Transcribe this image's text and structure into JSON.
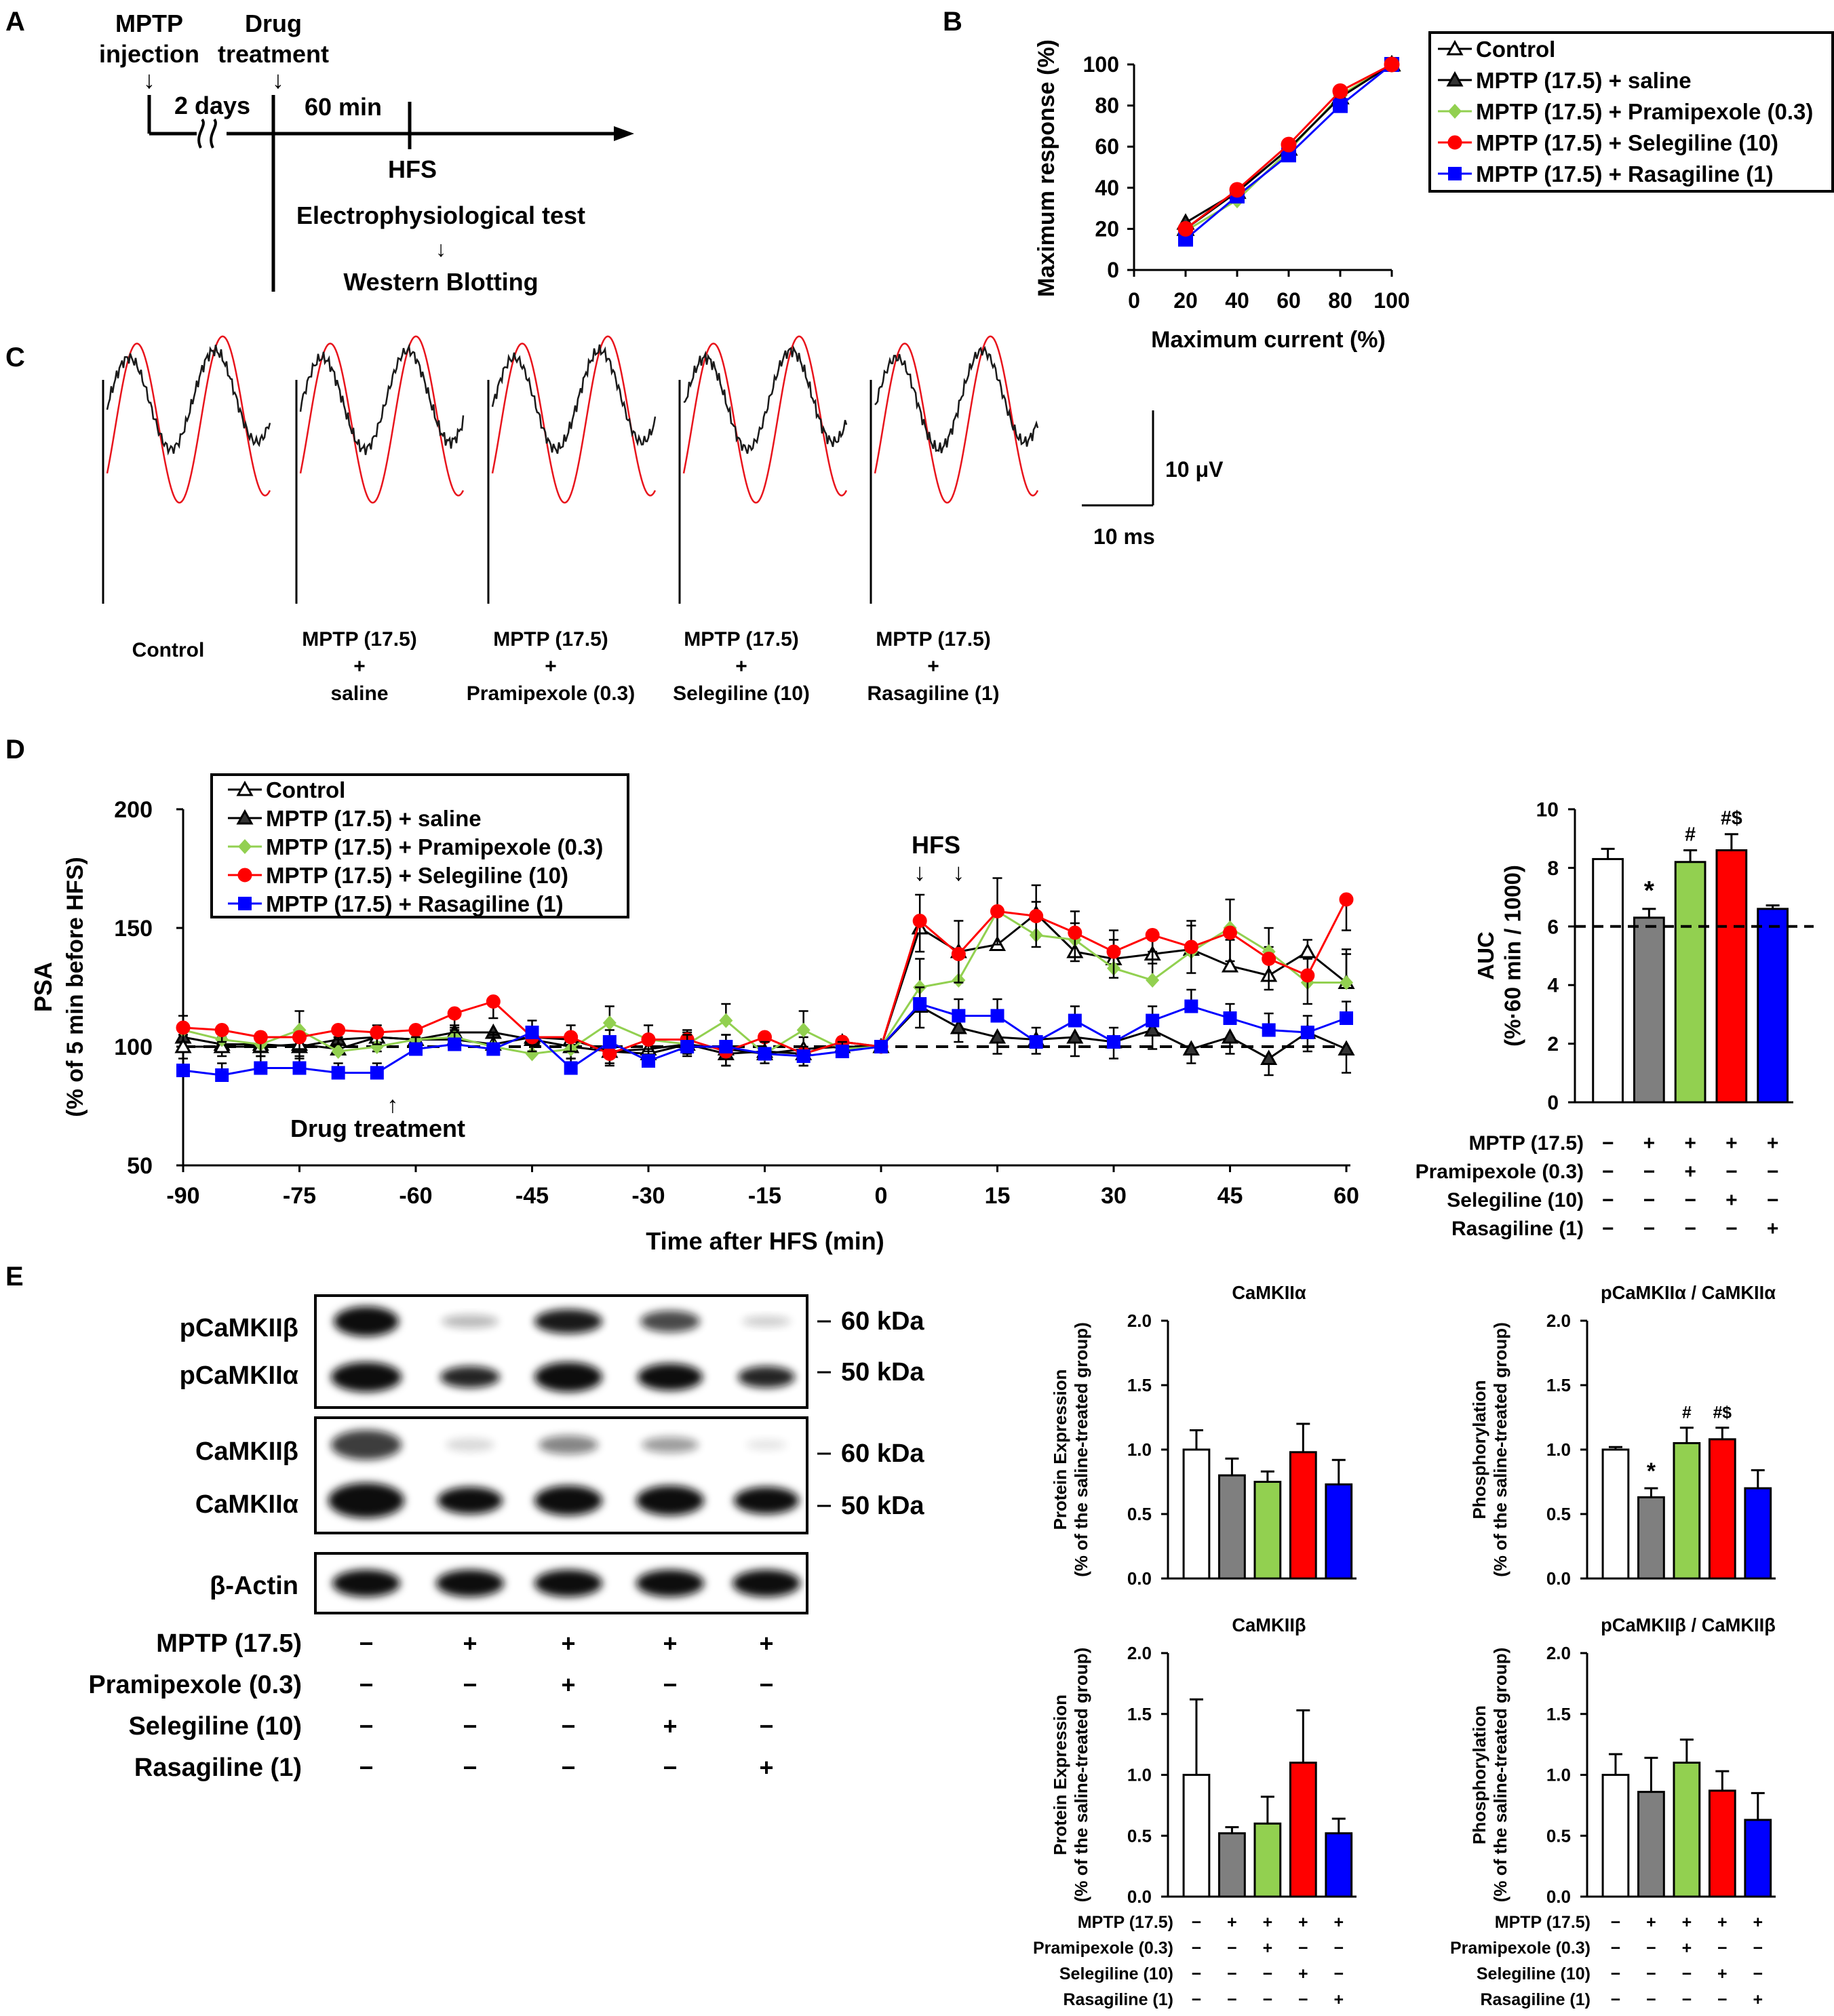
{
  "panel_letters": [
    "A",
    "B",
    "C",
    "D",
    "E"
  ],
  "colors": {
    "control": "#ffffff",
    "saline": "#7f7f7f",
    "pramipexole": "#92d050",
    "selegiline": "#ff0000",
    "rasagiline": "#0000ff",
    "axis": "#000000",
    "trace_black": "#1a1a1a",
    "trace_red": "#e8141c"
  },
  "groups_legend": [
    {
      "label": "Control",
      "marker": "triangle-open",
      "color": "#000000"
    },
    {
      "label": "MPTP (17.5) + saline",
      "marker": "triangle-filled",
      "color": "#000000"
    },
    {
      "label": "MPTP (17.5) + Pramipexole (0.3)",
      "marker": "diamond",
      "color": "#92d050"
    },
    {
      "label": "MPTP (17.5) + Selegiline (10)",
      "marker": "circle",
      "color": "#ff0000"
    },
    {
      "label": "MPTP (17.5) + Rasagiline (1)",
      "marker": "square",
      "color": "#0000ff"
    }
  ],
  "timeline": {
    "mptp_label": [
      "MPTP",
      "injection"
    ],
    "drug_label": [
      "Drug",
      "treatment"
    ],
    "gap_label": "2 days",
    "interval_label": "60 min",
    "hfs_label": "HFS",
    "test_label": "Electrophysiological test",
    "wb_label": "Western Blotting",
    "arrow_down": "↓"
  },
  "traces": {
    "labels": [
      [
        "Control"
      ],
      [
        "MPTP (17.5)",
        "+",
        "saline"
      ],
      [
        "MPTP (17.5)",
        "+",
        "Pramipexole (0.3)"
      ],
      [
        "MPTP (17.5)",
        "+",
        "Selegiline (10)"
      ],
      [
        "MPTP (17.5)",
        "+",
        "Rasagiline (1)"
      ]
    ],
    "scale_v": "10 μV",
    "scale_t": "10 ms"
  },
  "blot": {
    "bands_top": [
      "pCaMKIIβ",
      "pCaMKIIα"
    ],
    "bands_mid": [
      "CaMKIIβ",
      "CaMKIIα"
    ],
    "band_actin": "β-Actin",
    "kda": [
      "60 kDa",
      "50 kDa",
      "60 kDa",
      "50 kDa"
    ],
    "treatment_rows": [
      {
        "label": "MPTP (17.5)",
        "signs": [
          "−",
          "+",
          "+",
          "+",
          "+"
        ]
      },
      {
        "label": "Pramipexole (0.3)",
        "signs": [
          "−",
          "−",
          "+",
          "−",
          "−"
        ]
      },
      {
        "label": "Selegiline (10)",
        "signs": [
          "−",
          "−",
          "−",
          "+",
          "−"
        ]
      },
      {
        "label": "Rasagiline (1)",
        "signs": [
          "−",
          "−",
          "−",
          "−",
          "+"
        ]
      }
    ]
  },
  "treatment_rows_bar": [
    {
      "label": "MPTP (17.5)",
      "signs": [
        "−",
        "+",
        "+",
        "+",
        "+"
      ]
    },
    {
      "label": "Pramipexole (0.3)",
      "signs": [
        "−",
        "−",
        "+",
        "−",
        "−"
      ]
    },
    {
      "label": "Selegiline (10)",
      "signs": [
        "−",
        "−",
        "−",
        "+",
        "−"
      ]
    },
    {
      "label": "Rasagiline (1)",
      "signs": [
        "−",
        "−",
        "−",
        "−",
        "+"
      ]
    }
  ],
  "chart_data": [
    {
      "id": "B",
      "type": "line",
      "xlabel": "Maximum current (%)",
      "ylabel": "Maximum response (%)",
      "xlim": [
        0,
        100
      ],
      "ylim": [
        0,
        100
      ],
      "xticks": [
        0,
        20,
        40,
        60,
        80,
        100
      ],
      "yticks": [
        0,
        20,
        40,
        60,
        80,
        100
      ],
      "x": [
        20,
        40,
        60,
        80,
        100
      ],
      "series": [
        {
          "name": "Control",
          "values": [
            20,
            38,
            59,
            84,
            100
          ]
        },
        {
          "name": "MPTP (17.5) + saline",
          "values": [
            23,
            38,
            59,
            84,
            100
          ]
        },
        {
          "name": "MPTP (17.5) + Pramipexole (0.3)",
          "values": [
            19,
            34,
            58,
            85,
            100
          ]
        },
        {
          "name": "MPTP (17.5) + Selegiline (10)",
          "values": [
            20,
            39,
            61,
            87,
            100
          ]
        },
        {
          "name": "MPTP (17.5) + Rasagiline (1)",
          "values": [
            15,
            36,
            56,
            80,
            100
          ]
        }
      ]
    },
    {
      "id": "D-time",
      "type": "line",
      "xlabel": "Time after HFS (min)",
      "ylabel": [
        "PSA",
        "(% of 5 min before HFS)"
      ],
      "xlim": [
        -90,
        60
      ],
      "ylim": [
        50,
        200
      ],
      "xticks": [
        -90,
        -75,
        -60,
        -45,
        -30,
        -15,
        0,
        15,
        30,
        45,
        60
      ],
      "yticks": [
        50,
        100,
        150,
        200
      ],
      "baseline": 100,
      "annotations": [
        {
          "text": "HFS",
          "x": 5
        },
        {
          "text": "Drug treatment",
          "x": -63
        }
      ],
      "x": [
        -90,
        -85,
        -80,
        -75,
        -70,
        -65,
        -60,
        -55,
        -50,
        -45,
        -40,
        -35,
        -30,
        -25,
        -20,
        -15,
        -10,
        -5,
        0,
        5,
        10,
        15,
        20,
        25,
        30,
        35,
        40,
        45,
        50,
        55,
        60
      ],
      "series": [
        {
          "name": "Control",
          "values": [
            100,
            100,
            100,
            101,
            99,
            104,
            103,
            103,
            101,
            104,
            103,
            98,
            99,
            101,
            99,
            97,
            99,
            100,
            100,
            150,
            140,
            143,
            156,
            140,
            137,
            139,
            141,
            134,
            130,
            140,
            127
          ],
          "errors": [
            5,
            4,
            5,
            5,
            5,
            5,
            5,
            5,
            5,
            4,
            6,
            5,
            4,
            5,
            6,
            5,
            5,
            3,
            0,
            14,
            13,
            14,
            12,
            12,
            12,
            10,
            12,
            11,
            12,
            5,
            14
          ]
        },
        {
          "name": "MPTP (17.5) + saline",
          "values": [
            104,
            101,
            101,
            100,
            103,
            104,
            103,
            106,
            106,
            103,
            100,
            98,
            97,
            101,
            97,
            98,
            97,
            102,
            100,
            117,
            108,
            104,
            103,
            104,
            102,
            107,
            99,
            104,
            95,
            106,
            99
          ],
          "errors": [
            5,
            5,
            5,
            5,
            5,
            6,
            6,
            5,
            6,
            5,
            5,
            5,
            5,
            5,
            5,
            5,
            5,
            4,
            0,
            9,
            6,
            7,
            6,
            8,
            7,
            8,
            6,
            7,
            7,
            8,
            10
          ]
        },
        {
          "name": "MPTP (17.5) + Pramipexole (0.3)",
          "values": [
            107,
            103,
            101,
            107,
            98,
            100,
            103,
            104,
            100,
            97,
            99,
            110,
            103,
            101,
            111,
            97,
            107,
            99,
            100,
            125,
            128,
            157,
            147,
            145,
            133,
            128,
            140,
            150,
            140,
            127,
            127
          ],
          "errors": [
            6,
            5,
            5,
            8,
            5,
            6,
            5,
            5,
            6,
            5,
            6,
            7,
            6,
            6,
            7,
            5,
            8,
            5,
            0,
            12,
            12,
            14,
            14,
            12,
            12,
            12,
            11,
            12,
            10,
            10,
            12
          ]
        },
        {
          "name": "MPTP (17.5) + Selegiline (10)",
          "values": [
            108,
            107,
            104,
            104,
            107,
            106,
            107,
            114,
            119,
            104,
            104,
            97,
            103,
            103,
            98,
            104,
            97,
            102,
            100,
            153,
            139,
            157,
            155,
            148,
            140,
            147,
            142,
            148,
            137,
            130,
            162
          ],
          "errors": [
            6,
            5,
            6,
            5,
            6,
            5,
            6,
            7,
            7,
            6,
            6,
            5,
            5,
            6,
            6,
            6,
            5,
            5,
            0,
            13,
            12,
            14,
            13,
            12,
            11,
            12,
            11,
            12,
            13,
            12,
            13
          ]
        },
        {
          "name": "MPTP (17.5) + Rasagiline (1)",
          "values": [
            90,
            88,
            91,
            91,
            89,
            89,
            99,
            101,
            99,
            106,
            91,
            102,
            94,
            100,
            100,
            97,
            96,
            98,
            100,
            118,
            113,
            113,
            102,
            111,
            102,
            111,
            117,
            112,
            107,
            106,
            112
          ],
          "errors": [
            5,
            5,
            5,
            5,
            4,
            4,
            5,
            5,
            6,
            5,
            4,
            5,
            5,
            5,
            5,
            5,
            4,
            4,
            0,
            7,
            7,
            7,
            6,
            6,
            6,
            6,
            7,
            6,
            7,
            7,
            7
          ]
        }
      ]
    },
    {
      "id": "D-AUC",
      "type": "bar",
      "ylabel": [
        "AUC",
        "(%·60 min / 1000)"
      ],
      "ylim": [
        0,
        10
      ],
      "yticks": [
        0,
        2,
        4,
        6,
        8,
        10
      ],
      "baseline": 6,
      "values": [
        8.3,
        6.3,
        8.2,
        8.6,
        6.6
      ],
      "errors": [
        0.35,
        0.3,
        0.4,
        0.55,
        0.12
      ],
      "sig": [
        "",
        "*",
        "#",
        "#$",
        ""
      ]
    },
    {
      "id": "E-CaMKIIa",
      "type": "bar",
      "title": "CaMKIIα",
      "ylabel": [
        "Protein Expression",
        "(% of the saline-treated group)"
      ],
      "ylim": [
        0,
        2
      ],
      "yticks": [
        "0.0",
        "0.5",
        "1.0",
        "1.5",
        "2.0"
      ],
      "values": [
        1.0,
        0.8,
        0.75,
        0.98,
        0.73
      ],
      "errors": [
        0.15,
        0.13,
        0.08,
        0.22,
        0.19
      ],
      "sig": [
        "",
        "",
        "",
        "",
        ""
      ]
    },
    {
      "id": "E-pCaMKIIa",
      "type": "bar",
      "title": "pCaMKIIα / CaMKIIα",
      "ylabel": [
        "Phosphorylation",
        "(% of the saline-treated group)"
      ],
      "ylim": [
        0,
        2
      ],
      "yticks": [
        "0.0",
        "0.5",
        "1.0",
        "1.5",
        "2.0"
      ],
      "values": [
        1.0,
        0.63,
        1.05,
        1.08,
        0.7
      ],
      "errors": [
        0.02,
        0.07,
        0.12,
        0.09,
        0.14
      ],
      "sig": [
        "",
        "*",
        "#",
        "#$",
        ""
      ]
    },
    {
      "id": "E-CaMKIIb",
      "type": "bar",
      "title": "CaMKIIβ",
      "ylabel": [
        "Protein Expression",
        "(% of the saline-treated group)"
      ],
      "ylim": [
        0,
        2
      ],
      "yticks": [
        "0.0",
        "0.5",
        "1.0",
        "1.5",
        "2.0"
      ],
      "values": [
        1.0,
        0.52,
        0.6,
        1.1,
        0.52
      ],
      "errors": [
        0.62,
        0.05,
        0.22,
        0.43,
        0.12
      ],
      "sig": [
        "",
        "",
        "",
        "",
        ""
      ]
    },
    {
      "id": "E-pCaMKIIb",
      "type": "bar",
      "title": "pCaMKIIβ / CaMKIIβ",
      "ylabel": [
        "Phosphorylation",
        "(% of the saline-treated group)"
      ],
      "ylim": [
        0,
        2
      ],
      "yticks": [
        "0.0",
        "0.5",
        "1.0",
        "1.5",
        "2.0"
      ],
      "values": [
        1.0,
        0.86,
        1.1,
        0.87,
        0.63
      ],
      "errors": [
        0.17,
        0.28,
        0.19,
        0.16,
        0.22
      ],
      "sig": [
        "",
        "",
        "",
        "",
        ""
      ]
    }
  ]
}
